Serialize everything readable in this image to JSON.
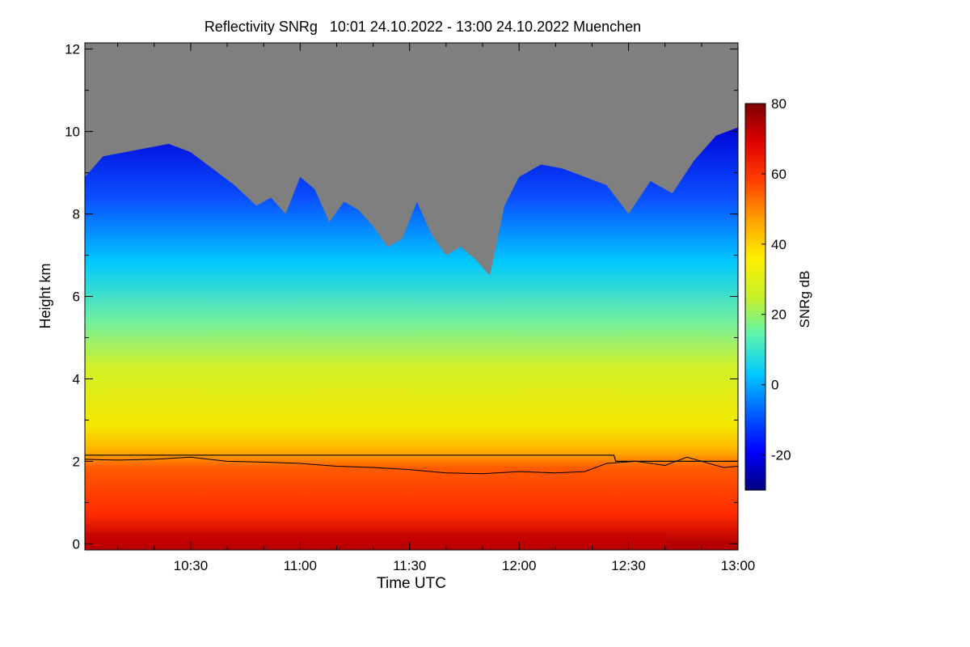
{
  "chart_data": {
    "type": "heatmap",
    "title": "Reflectivity SNRg   10:01 24.10.2022 - 13:00 24.10.2022 Muenchen",
    "xlabel": "Time UTC",
    "ylabel": "Height km",
    "colorbar_label": "SNRg dB",
    "xlim_minutes_utc": [
      601,
      780
    ],
    "ylim_km": [
      -0.15,
      12.15
    ],
    "x_ticks": [
      {
        "minute": 630,
        "label": "10:30"
      },
      {
        "minute": 660,
        "label": "11:00"
      },
      {
        "minute": 690,
        "label": "11:30"
      },
      {
        "minute": 720,
        "label": "12:00"
      },
      {
        "minute": 750,
        "label": "12:30"
      },
      {
        "minute": 780,
        "label": "13:00"
      }
    ],
    "y_ticks": [
      {
        "value": 0,
        "label": "0"
      },
      {
        "value": 2,
        "label": "2"
      },
      {
        "value": 4,
        "label": "4"
      },
      {
        "value": 6,
        "label": "6"
      },
      {
        "value": 8,
        "label": "8"
      },
      {
        "value": 10,
        "label": "10"
      },
      {
        "value": 12,
        "label": "12"
      }
    ],
    "colorbar_range_db": [
      -30,
      80
    ],
    "colorbar_ticks": [
      {
        "value": 80,
        "label": "80"
      },
      {
        "value": 60,
        "label": "60"
      },
      {
        "value": 40,
        "label": "40"
      },
      {
        "value": 20,
        "label": "20"
      },
      {
        "value": 0,
        "label": "0"
      },
      {
        "value": -20,
        "label": "-20"
      }
    ],
    "no_echo_color": "#7f7f7f",
    "colormap": [
      "#00007f",
      "#0000ff",
      "#0060ff",
      "#00c8ff",
      "#5af5b0",
      "#c8f028",
      "#fff000",
      "#ffa000",
      "#ff4000",
      "#e00000",
      "#7f0000"
    ],
    "cloud_top_km": [
      {
        "t": 601,
        "h": 8.9
      },
      {
        "t": 606,
        "h": 9.4
      },
      {
        "t": 612,
        "h": 9.5
      },
      {
        "t": 618,
        "h": 9.6
      },
      {
        "t": 624,
        "h": 9.7
      },
      {
        "t": 630,
        "h": 9.5
      },
      {
        "t": 636,
        "h": 9.1
      },
      {
        "t": 642,
        "h": 8.7
      },
      {
        "t": 648,
        "h": 8.2
      },
      {
        "t": 652,
        "h": 8.4
      },
      {
        "t": 656,
        "h": 8.0
      },
      {
        "t": 660,
        "h": 8.9
      },
      {
        "t": 664,
        "h": 8.6
      },
      {
        "t": 668,
        "h": 7.8
      },
      {
        "t": 672,
        "h": 8.3
      },
      {
        "t": 676,
        "h": 8.1
      },
      {
        "t": 680,
        "h": 7.7
      },
      {
        "t": 684,
        "h": 7.2
      },
      {
        "t": 688,
        "h": 7.4
      },
      {
        "t": 692,
        "h": 8.3
      },
      {
        "t": 696,
        "h": 7.5
      },
      {
        "t": 700,
        "h": 7.0
      },
      {
        "t": 704,
        "h": 7.2
      },
      {
        "t": 708,
        "h": 6.9
      },
      {
        "t": 712,
        "h": 6.5
      },
      {
        "t": 716,
        "h": 8.2
      },
      {
        "t": 720,
        "h": 8.9
      },
      {
        "t": 726,
        "h": 9.2
      },
      {
        "t": 732,
        "h": 9.1
      },
      {
        "t": 738,
        "h": 8.9
      },
      {
        "t": 744,
        "h": 8.7
      },
      {
        "t": 750,
        "h": 8.0
      },
      {
        "t": 756,
        "h": 8.8
      },
      {
        "t": 762,
        "h": 8.5
      },
      {
        "t": 768,
        "h": 9.3
      },
      {
        "t": 774,
        "h": 9.9
      },
      {
        "t": 780,
        "h": 10.1
      }
    ],
    "line_upper_km": [
      {
        "t": 601,
        "h": 2.15
      },
      {
        "t": 746,
        "h": 2.15
      },
      {
        "t": 746.5,
        "h": 2.0
      },
      {
        "t": 780,
        "h": 2.0
      }
    ],
    "line_lower_km": [
      {
        "t": 601,
        "h": 2.05
      },
      {
        "t": 610,
        "h": 2.03
      },
      {
        "t": 620,
        "h": 2.05
      },
      {
        "t": 630,
        "h": 2.1
      },
      {
        "t": 640,
        "h": 2.0
      },
      {
        "t": 650,
        "h": 1.98
      },
      {
        "t": 660,
        "h": 1.95
      },
      {
        "t": 670,
        "h": 1.88
      },
      {
        "t": 680,
        "h": 1.85
      },
      {
        "t": 690,
        "h": 1.8
      },
      {
        "t": 700,
        "h": 1.72
      },
      {
        "t": 710,
        "h": 1.7
      },
      {
        "t": 720,
        "h": 1.75
      },
      {
        "t": 730,
        "h": 1.72
      },
      {
        "t": 738,
        "h": 1.75
      },
      {
        "t": 744,
        "h": 1.95
      },
      {
        "t": 752,
        "h": 2.0
      },
      {
        "t": 760,
        "h": 1.9
      },
      {
        "t": 766,
        "h": 2.1
      },
      {
        "t": 770,
        "h": 2.0
      },
      {
        "t": 776,
        "h": 1.85
      },
      {
        "t": 780,
        "h": 1.88
      }
    ]
  }
}
